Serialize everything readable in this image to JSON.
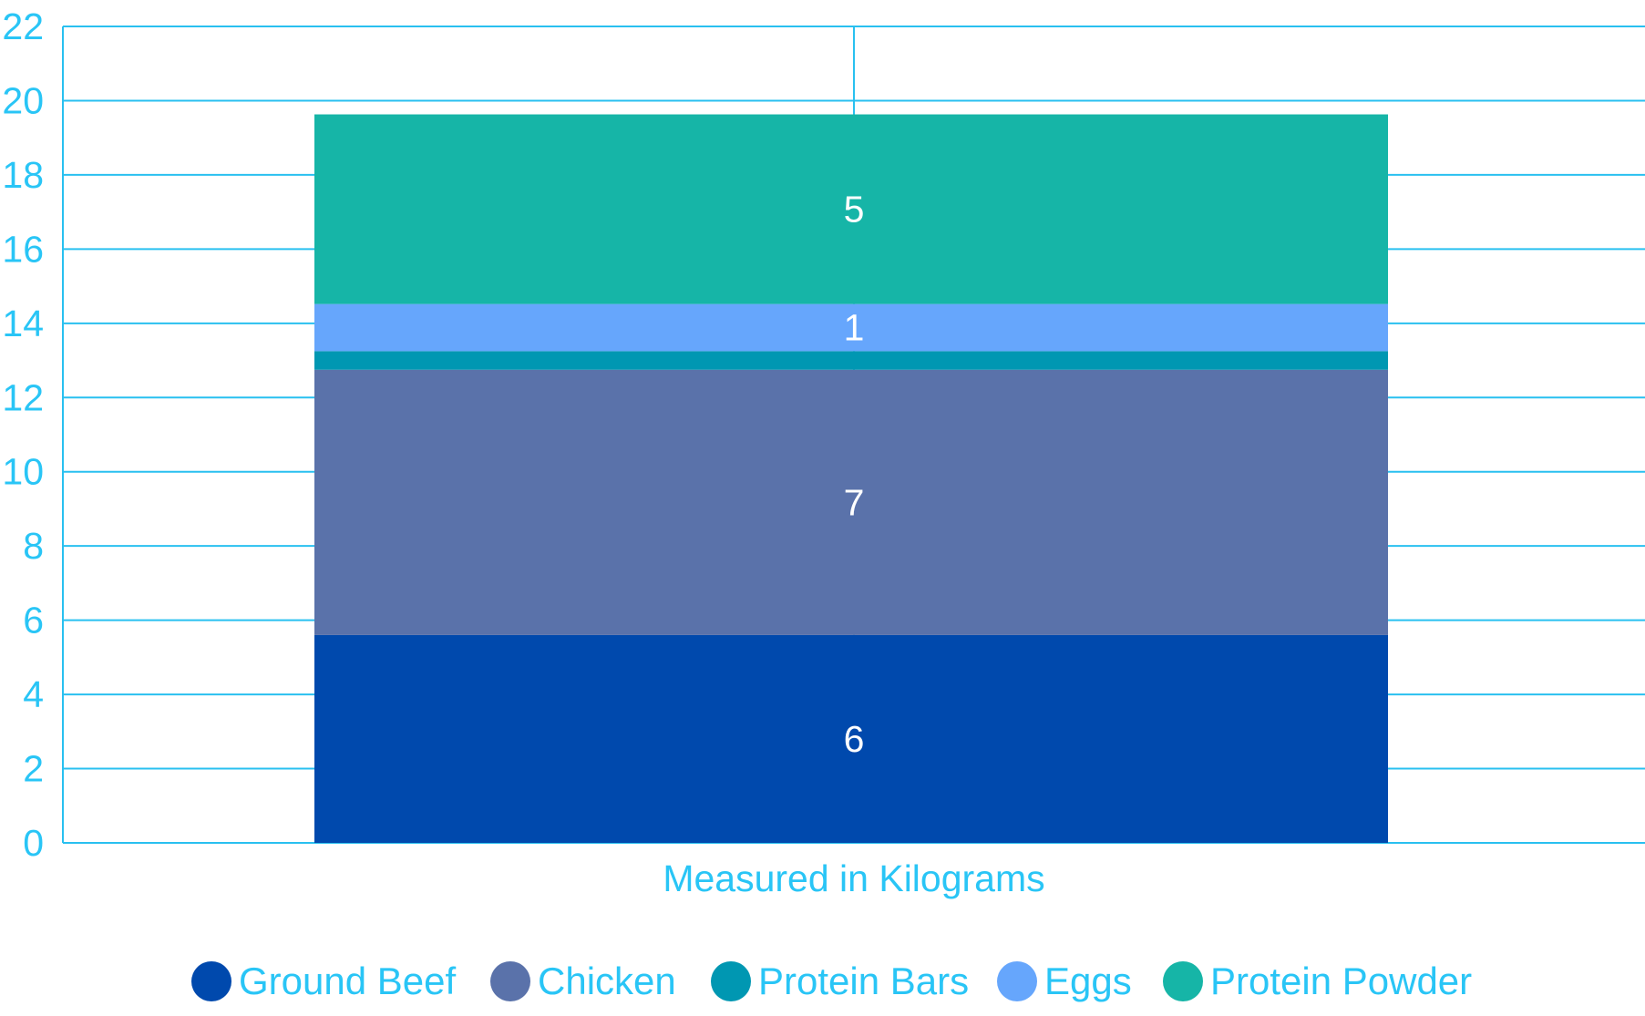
{
  "chart_data": {
    "type": "bar",
    "stacked": true,
    "categories": [
      ""
    ],
    "xlabel": "Measured in Kilograms",
    "ylabel": "",
    "ylim": [
      0,
      22
    ],
    "yticks": [
      0,
      2,
      4,
      6,
      8,
      10,
      12,
      14,
      16,
      18,
      20,
      22
    ],
    "grid": true,
    "legend_position": "bottom",
    "series": [
      {
        "name": "Ground Beef",
        "values": [
          5.6
        ],
        "data_label": "6",
        "color": "#0049AD"
      },
      {
        "name": "Chicken",
        "values": [
          7.15
        ],
        "data_label": "7",
        "color": "#5A72AA"
      },
      {
        "name": "Protein Bars",
        "values": [
          0.5
        ],
        "data_label": "",
        "color": "#0097B2"
      },
      {
        "name": "Eggs",
        "values": [
          1.27
        ],
        "data_label": "1",
        "color": "#66A6FC"
      },
      {
        "name": "Protein Powder",
        "values": [
          5.11
        ],
        "data_label": "5",
        "color": "#16B5A7"
      }
    ],
    "colors": {
      "text": "#29C5F6",
      "grid": "#29C0F0",
      "data_label": "#FFFFFF"
    }
  }
}
